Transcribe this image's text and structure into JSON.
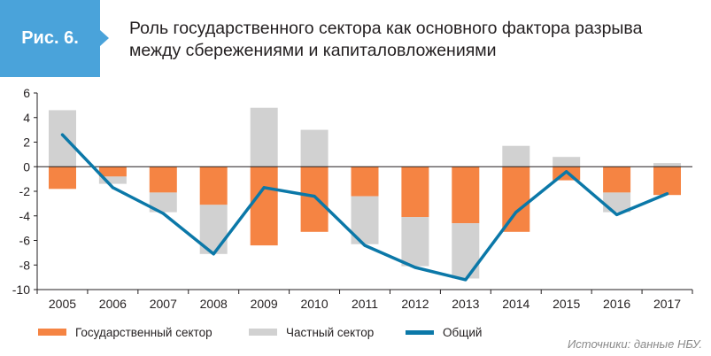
{
  "figure": {
    "label": "Рис. 6.",
    "title": "Роль государственного сектора как основного фактора разрыва между сбережениями и капиталовложениями"
  },
  "chart_data": {
    "type": "bar",
    "title": "Роль государственного сектора как основного фактора разрыва между сбережениями и капиталовложениями",
    "categories": [
      "2005",
      "2006",
      "2007",
      "2008",
      "2009",
      "2010",
      "2011",
      "2012",
      "2013",
      "2014",
      "2015",
      "2016",
      "2017"
    ],
    "ylim": [
      -10,
      6
    ],
    "yticks": [
      6,
      4,
      2,
      0,
      -2,
      -4,
      -6,
      -8,
      -10
    ],
    "stacked": true,
    "grid": false,
    "legend_position": "bottom",
    "series": [
      {
        "name": "Государственный сектор",
        "kind": "bar",
        "color": "#f58443",
        "values": [
          -1.8,
          -0.8,
          -2.1,
          -3.1,
          -6.4,
          -5.3,
          -2.4,
          -4.1,
          -4.6,
          -5.3,
          -1.1,
          -2.1,
          -2.3
        ]
      },
      {
        "name": "Частный сектор",
        "kind": "bar",
        "color": "#d1d1d1",
        "values": [
          4.6,
          -0.6,
          -1.6,
          -4.0,
          4.8,
          3.0,
          -3.9,
          -4.0,
          -4.5,
          1.7,
          0.8,
          -1.6,
          0.3
        ]
      },
      {
        "name": "Общий",
        "kind": "line",
        "color": "#0b78a8",
        "values": [
          2.6,
          -1.7,
          -3.8,
          -7.1,
          -1.7,
          -2.4,
          -6.4,
          -8.2,
          -9.2,
          -3.7,
          -0.4,
          -3.9,
          -2.2
        ]
      }
    ]
  },
  "source": "Источники: данные НБУ."
}
